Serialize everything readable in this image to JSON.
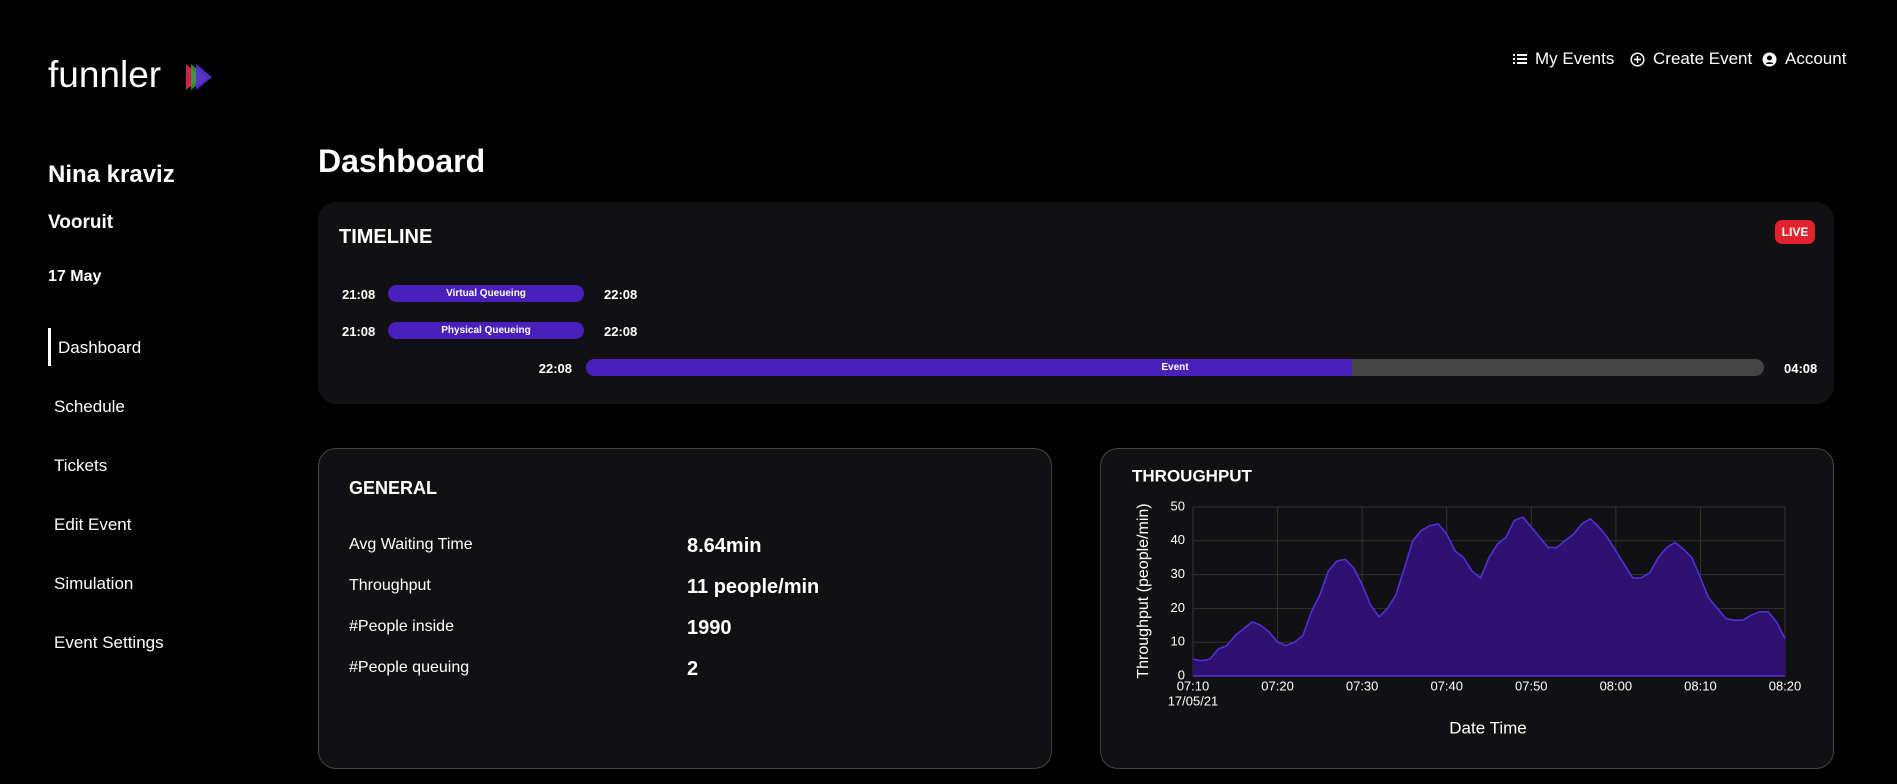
{
  "header": {
    "logo": "funnler",
    "nav": [
      "My Events",
      "Create Event",
      "Account"
    ]
  },
  "sidebar": {
    "event": "Nina kraviz",
    "venue": "Vooruit",
    "date": "17 May",
    "menu": [
      "Dashboard",
      "Schedule",
      "Tickets",
      "Edit Event",
      "Simulation",
      "Event Settings"
    ]
  },
  "page_title": "Dashboard",
  "timeline": {
    "title": "TIMELINE",
    "status": "LIVE",
    "phases": [
      {
        "start": "21:08",
        "label": "Virtual Queueing",
        "end": "22:08"
      },
      {
        "start": "21:08",
        "label": "Physical Queueing",
        "end": "22:08"
      }
    ],
    "event": {
      "start": "22:08",
      "label": "Event",
      "end": "04:08",
      "progress": 65
    }
  },
  "general": {
    "title": "GENERAL",
    "rows": [
      {
        "label": "Avg Waiting Time",
        "value": "8.64min"
      },
      {
        "label": "Throughput",
        "value": "11 people/min"
      },
      {
        "label": "#People inside",
        "value": "1990"
      },
      {
        "label": "#People queuing",
        "value": "2"
      }
    ]
  },
  "chart_data": {
    "type": "area",
    "title": "THROUGHPUT",
    "x_label": "Date Time",
    "y_label": "Throughput (people/min)",
    "x": [
      "07:10",
      "07:11",
      "07:12",
      "07:13",
      "07:14",
      "07:15",
      "07:16",
      "07:17",
      "07:18",
      "07:19",
      "07:20",
      "07:21",
      "07:22",
      "07:23",
      "07:24",
      "07:25",
      "07:26",
      "07:27",
      "07:28",
      "07:29",
      "07:30",
      "07:31",
      "07:32",
      "07:33",
      "07:34",
      "07:35",
      "07:36",
      "07:37",
      "07:38",
      "07:39",
      "07:40",
      "07:41",
      "07:42",
      "07:43",
      "07:44",
      "07:45",
      "07:46",
      "07:47",
      "07:48",
      "07:49",
      "07:50",
      "07:51",
      "07:52",
      "07:53",
      "07:54",
      "07:55",
      "07:56",
      "07:57",
      "07:58",
      "07:59",
      "08:00",
      "08:01",
      "08:02",
      "08:03",
      "08:04",
      "08:05",
      "08:06",
      "08:07",
      "08:08",
      "08:09",
      "08:10",
      "08:11",
      "08:12",
      "08:13",
      "08:14",
      "08:15",
      "08:16",
      "08:17",
      "08:18",
      "08:19",
      "08:20"
    ],
    "values": [
      5,
      4.5,
      5,
      8,
      9,
      12,
      14,
      16,
      15,
      13,
      10,
      9,
      10,
      12,
      19,
      24,
      31,
      34,
      34.5,
      32,
      27,
      21,
      17.5,
      20,
      24,
      32,
      40,
      43,
      44.5,
      45,
      42,
      37,
      35,
      31,
      29,
      35,
      39,
      41,
      46,
      47,
      44,
      41,
      38,
      38,
      40,
      42,
      45,
      46.5,
      44,
      41,
      37,
      33,
      29,
      29,
      30.5,
      35,
      38,
      39.5,
      37.5,
      35,
      29,
      23,
      20,
      17,
      16.5,
      16.5,
      18,
      19,
      19,
      16,
      11
    ],
    "color": "#2e1170",
    "line_color": "#5330d8",
    "xlim": [
      "07:10",
      "08:20"
    ],
    "xticks": [
      "07:10",
      "07:20",
      "07:30",
      "07:40",
      "07:50",
      "08:00",
      "08:10",
      "08:20"
    ],
    "xticks_date": "17/05/21",
    "ylim": [
      0,
      50
    ],
    "yticks": [
      0,
      10,
      20,
      30,
      40,
      50
    ],
    "grid": true
  }
}
